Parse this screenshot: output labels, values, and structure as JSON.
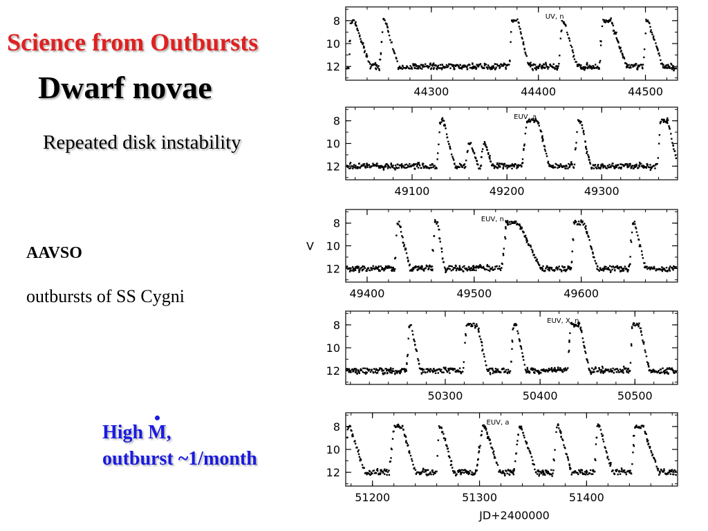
{
  "slide": {
    "title": "Science from Outbursts",
    "heading": "Dwarf novae",
    "subtitle": "Repeated disk instability",
    "source": "AAVSO",
    "caption": "outbursts of SS Cygni",
    "note_line1_prefix": "High ",
    "note_line1_symbol": "M",
    "note_line1_suffix": ",",
    "note_line2": "outburst ~1/month",
    "colors": {
      "title": "#e02020",
      "note": "#1a1ae0"
    }
  },
  "chart_data": [
    {
      "type": "scatter",
      "annotation": "UV, n",
      "xlim": [
        44220,
        44530
      ],
      "ylim": [
        13.2,
        6.8
      ],
      "y_inverted": true,
      "xticks": [
        44300,
        44400,
        44500
      ],
      "yticks": [
        8,
        10,
        12
      ],
      "ylabel": "",
      "xlabel": "",
      "events": [
        {
          "peak": 44225,
          "rise": 2,
          "plateau": 3,
          "decay": 15,
          "quiet_start": 44222
        },
        {
          "peak": 44255,
          "rise": 3,
          "plateau": 2,
          "decay": 12
        },
        {
          "peak": 44375,
          "rise": 2,
          "plateau": 6,
          "decay": 10
        },
        {
          "peak": 44422,
          "rise": 3,
          "plateau": 2,
          "decay": 12
        },
        {
          "peak": 44460,
          "rise": 3,
          "plateau": 8,
          "decay": 14
        },
        {
          "peak": 44501,
          "rise": 3,
          "plateau": 2,
          "decay": 13
        }
      ]
    },
    {
      "type": "scatter",
      "annotation": "EUV, a",
      "xlim": [
        49030,
        49380
      ],
      "ylim": [
        13.2,
        6.8
      ],
      "y_inverted": true,
      "xticks": [
        49100,
        49200,
        49300
      ],
      "yticks": [
        8,
        10,
        12
      ],
      "ylabel": "",
      "xlabel": "",
      "events": [
        {
          "peak": 49130,
          "rise": 4,
          "plateau": 3,
          "decay": 12
        },
        {
          "peak": 49160,
          "rise": 4,
          "plateau": 2,
          "decay": 8,
          "peak_mag": 10.0
        },
        {
          "peak": 49175,
          "rise": 3,
          "plateau": 2,
          "decay": 8,
          "peak_mag": 10.0
        },
        {
          "peak": 49221,
          "rise": 5,
          "plateau": 12,
          "decay": 12
        },
        {
          "peak": 49275,
          "rise": 4,
          "plateau": 3,
          "decay": 10
        },
        {
          "peak": 49362,
          "rise": 3,
          "plateau": 8,
          "decay": 10
        }
      ]
    },
    {
      "type": "scatter",
      "annotation": "EUV, n",
      "xlim": [
        49380,
        49690
      ],
      "ylim": [
        13.2,
        6.8
      ],
      "y_inverted": true,
      "xticks": [
        49400,
        49500,
        49600
      ],
      "yticks": [
        8,
        10,
        12
      ],
      "ylabel": "V",
      "xlabel": "",
      "events": [
        {
          "peak": 49428,
          "rise": 2,
          "plateau": 2,
          "decay": 10
        },
        {
          "peak": 49463,
          "rise": 2,
          "plateau": 3,
          "decay": 6
        },
        {
          "peak": 49530,
          "rise": 4,
          "plateau": 12,
          "decay": 20
        },
        {
          "peak": 49593,
          "rise": 2,
          "plateau": 10,
          "decay": 12
        },
        {
          "peak": 49648,
          "rise": 3,
          "plateau": 2,
          "decay": 10
        }
      ]
    },
    {
      "type": "scatter",
      "annotation": "EUV, X, n",
      "xlim": [
        50195,
        50545
      ],
      "ylim": [
        13.2,
        6.8
      ],
      "y_inverted": true,
      "xticks": [
        50300,
        50400,
        50500
      ],
      "yticks": [
        8,
        10,
        12
      ],
      "ylabel": "",
      "xlabel": "",
      "events": [
        {
          "peak": 50262,
          "rise": 3,
          "plateau": 2,
          "decay": 10
        },
        {
          "peak": 50322,
          "rise": 3,
          "plateau": 12,
          "decay": 10
        },
        {
          "peak": 50372,
          "rise": 3,
          "plateau": 3,
          "decay": 10
        },
        {
          "peak": 50432,
          "rise": 3,
          "plateau": 10,
          "decay": 10
        },
        {
          "peak": 50497,
          "rise": 2,
          "plateau": 8,
          "decay": 10
        }
      ]
    },
    {
      "type": "scatter",
      "annotation": "EUV, a",
      "xlim": [
        51175,
        51485
      ],
      "ylim": [
        13.2,
        6.8
      ],
      "y_inverted": true,
      "xticks": [
        51200,
        51300,
        51400
      ],
      "yticks": [
        8,
        10,
        12
      ],
      "ylabel": "",
      "xlabel": "JD+2400000",
      "events": [
        {
          "peak": 51177,
          "rise": 2,
          "plateau": 2,
          "decay": 14
        },
        {
          "peak": 51220,
          "rise": 4,
          "plateau": 8,
          "decay": 12
        },
        {
          "peak": 51262,
          "rise": 2,
          "plateau": 2,
          "decay": 12
        },
        {
          "peak": 51303,
          "rise": 6,
          "plateau": 2,
          "decay": 14
        },
        {
          "peak": 51337,
          "rise": 5,
          "plateau": 2,
          "decay": 14
        },
        {
          "peak": 51372,
          "rise": 3,
          "plateau": 2,
          "decay": 12
        },
        {
          "peak": 51410,
          "rise": 3,
          "plateau": 2,
          "decay": 12
        },
        {
          "peak": 51445,
          "rise": 3,
          "plateau": 8,
          "decay": 14
        }
      ]
    }
  ]
}
